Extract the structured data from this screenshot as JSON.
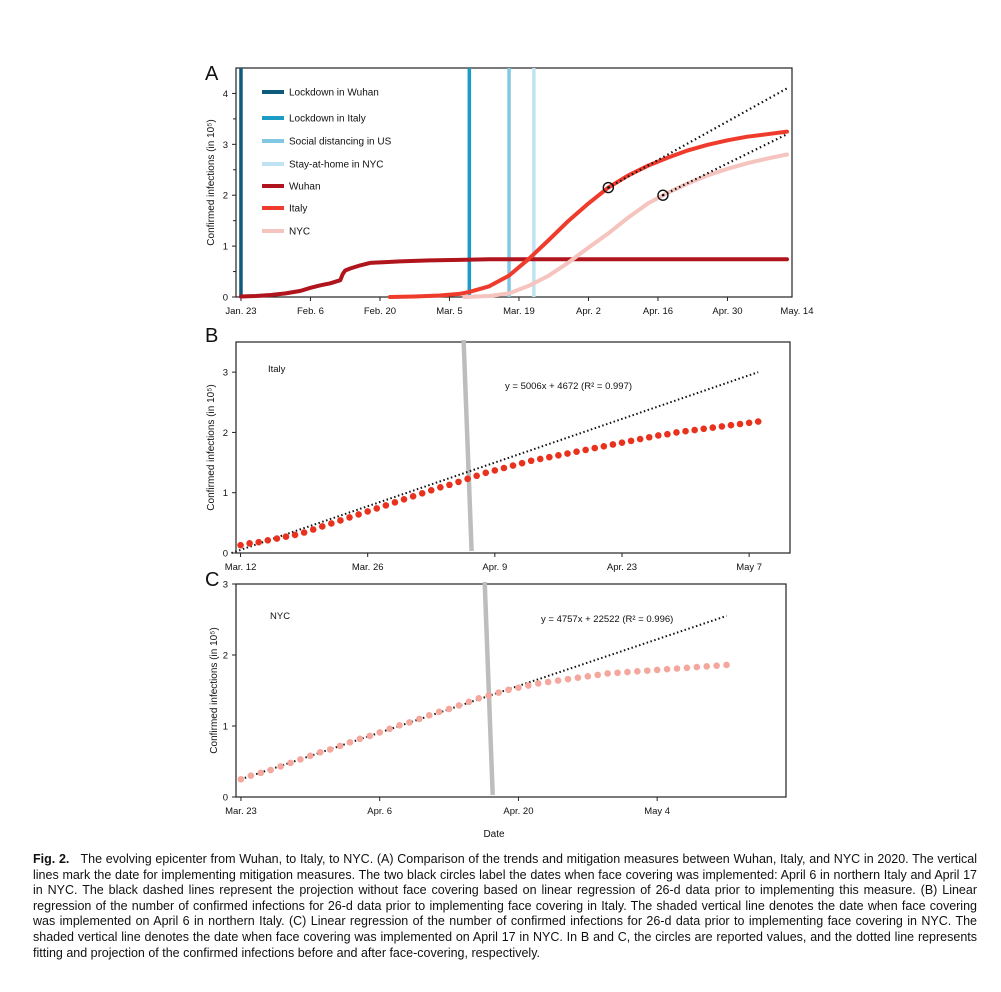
{
  "panels": [
    {
      "label": "A",
      "chart_data": {
        "type": "line",
        "xlabel": "",
        "ylabel": "Confirmed infections (in 10⁵)",
        "ylim": [
          0,
          4.5
        ],
        "yticks": [
          0,
          1,
          2,
          3,
          4
        ],
        "xlim": [
          -1,
          111
        ],
        "xticks": [
          {
            "x": 0,
            "label": "Jan. 23"
          },
          {
            "x": 14,
            "label": "Feb. 6"
          },
          {
            "x": 28,
            "label": "Feb. 20"
          },
          {
            "x": 42,
            "label": "Mar. 5"
          },
          {
            "x": 56,
            "label": "Mar. 19"
          },
          {
            "x": 70,
            "label": "Apr. 2"
          },
          {
            "x": 84,
            "label": "Apr. 16"
          },
          {
            "x": 98,
            "label": "Apr. 30"
          },
          {
            "x": 112,
            "label": "May. 14"
          }
        ],
        "vlines": [
          {
            "name": "Lockdown in Wuhan",
            "x": 0,
            "color": "#0e5a7a"
          },
          {
            "name": "Lockdown in Italy",
            "x": 46,
            "color": "#1a9cc4"
          },
          {
            "name": "Social distancing in US",
            "x": 54,
            "color": "#82c8e4"
          },
          {
            "name": "Stay-at-home in NYC",
            "x": 59,
            "color": "#bfe3f2"
          }
        ],
        "series": [
          {
            "name": "Wuhan",
            "color": "#b0141c",
            "x": [
              0,
              3,
              6,
              9,
              12,
              14,
              16,
              18,
              20,
              20.5,
              21,
              22,
              24,
              26,
              28,
              32,
              38,
              44,
              50,
              60,
              80,
              100,
              110
            ],
            "y": [
              0.01,
              0.02,
              0.04,
              0.07,
              0.12,
              0.18,
              0.23,
              0.27,
              0.33,
              0.45,
              0.52,
              0.56,
              0.62,
              0.67,
              0.68,
              0.7,
              0.72,
              0.73,
              0.74,
              0.74,
              0.74,
              0.74,
              0.74
            ]
          },
          {
            "name": "Italy",
            "color": "#ef3b2c",
            "x": [
              30,
              35,
              40,
              44,
              46,
              50,
              54,
              58,
              62,
              66,
              70,
              74,
              78,
              82,
              86,
              90,
              94,
              98,
              102,
              106,
              110
            ],
            "y": [
              0.0,
              0.01,
              0.03,
              0.06,
              0.1,
              0.21,
              0.42,
              0.75,
              1.12,
              1.5,
              1.84,
              2.15,
              2.39,
              2.58,
              2.74,
              2.88,
              2.99,
              3.08,
              3.15,
              3.2,
              3.25
            ]
          },
          {
            "name": "NYC",
            "color": "#f6c4be",
            "x": [
              45,
              50,
              54,
              58,
              62,
              66,
              70,
              74,
              78,
              82,
              86,
              90,
              94,
              98,
              102,
              106,
              110
            ],
            "y": [
              0.0,
              0.02,
              0.07,
              0.22,
              0.42,
              0.68,
              0.97,
              1.25,
              1.56,
              1.84,
              2.05,
              2.23,
              2.39,
              2.52,
              2.63,
              2.72,
              2.8
            ]
          }
        ],
        "projections": [
          {
            "x": [
              74,
              110
            ],
            "y": [
              2.15,
              4.1
            ]
          },
          {
            "x": [
              85,
              110
            ],
            "y": [
              2.0,
              3.2
            ]
          }
        ],
        "markers": [
          {
            "x": 74,
            "y": 2.15
          },
          {
            "x": 85,
            "y": 2.0
          }
        ],
        "legend": "top-left"
      }
    },
    {
      "label": "B",
      "chart_data": {
        "type": "scatter",
        "title": "Italy",
        "xlabel": "",
        "ylabel": "Confirmed infections (in 10⁵)",
        "ylim": [
          0,
          3.5
        ],
        "yticks": [
          0,
          1,
          2,
          3
        ],
        "xlim": [
          -0.5,
          60.5
        ],
        "xticks": [
          {
            "x": 0,
            "label": "Mar. 12"
          },
          {
            "x": 14,
            "label": "Mar. 26"
          },
          {
            "x": 28,
            "label": "Apr. 9"
          },
          {
            "x": 42,
            "label": "Apr. 23"
          },
          {
            "x": 56,
            "label": "May 7"
          }
        ],
        "annotation": "y = 5006x + 4672 (R² = 0.997)",
        "fit": {
          "x": [
            -1,
            57
          ],
          "y": [
            0.0,
            3.0
          ]
        },
        "intervention_x": 25,
        "point_color": "#e8321e",
        "x": [
          0,
          1,
          2,
          3,
          4,
          5,
          6,
          7,
          8,
          9,
          10,
          11,
          12,
          13,
          14,
          15,
          16,
          17,
          18,
          19,
          20,
          21,
          22,
          23,
          24,
          25,
          26,
          27,
          28,
          29,
          30,
          31,
          32,
          33,
          34,
          35,
          36,
          37,
          38,
          39,
          40,
          41,
          42,
          43,
          44,
          45,
          46,
          47,
          48,
          49,
          50,
          51,
          52,
          53,
          54,
          55,
          56,
          57
        ],
        "y": [
          0.13,
          0.16,
          0.18,
          0.21,
          0.24,
          0.27,
          0.3,
          0.34,
          0.39,
          0.44,
          0.49,
          0.54,
          0.59,
          0.64,
          0.69,
          0.74,
          0.79,
          0.84,
          0.89,
          0.94,
          0.99,
          1.04,
          1.09,
          1.13,
          1.18,
          1.23,
          1.28,
          1.33,
          1.37,
          1.41,
          1.45,
          1.49,
          1.53,
          1.56,
          1.59,
          1.62,
          1.65,
          1.68,
          1.71,
          1.74,
          1.77,
          1.8,
          1.83,
          1.86,
          1.89,
          1.92,
          1.95,
          1.97,
          2.0,
          2.02,
          2.04,
          2.06,
          2.08,
          2.1,
          2.12,
          2.14,
          2.16,
          2.18
        ]
      }
    },
    {
      "label": "C",
      "chart_data": {
        "type": "scatter",
        "title": "NYC",
        "xlabel": "Date",
        "ylabel": "Confirmed infections (in 10⁵)",
        "ylim": [
          0,
          3
        ],
        "yticks": [
          0,
          1,
          2,
          3
        ],
        "xlim": [
          -0.5,
          55
        ],
        "xticks": [
          {
            "x": 0,
            "label": "Mar. 23"
          },
          {
            "x": 14,
            "label": "Apr. 6"
          },
          {
            "x": 28,
            "label": "Apr. 20"
          },
          {
            "x": 42,
            "label": "May 4"
          }
        ],
        "annotation": "y = 4757x + 22522 (R² = 0.996)",
        "fit": {
          "x": [
            0,
            49
          ],
          "y": [
            0.25,
            2.55
          ]
        },
        "intervention_x": 25,
        "point_color": "#f4a79d",
        "x": [
          0,
          1,
          2,
          3,
          4,
          5,
          6,
          7,
          8,
          9,
          10,
          11,
          12,
          13,
          14,
          15,
          16,
          17,
          18,
          19,
          20,
          21,
          22,
          23,
          24,
          25,
          26,
          27,
          28,
          29,
          30,
          31,
          32,
          33,
          34,
          35,
          36,
          37,
          38,
          39,
          40,
          41,
          42,
          43,
          44,
          45,
          46,
          47,
          48,
          49
        ],
        "y": [
          0.25,
          0.3,
          0.34,
          0.38,
          0.43,
          0.48,
          0.53,
          0.58,
          0.63,
          0.67,
          0.72,
          0.77,
          0.82,
          0.86,
          0.91,
          0.96,
          1.01,
          1.05,
          1.1,
          1.15,
          1.2,
          1.24,
          1.29,
          1.34,
          1.39,
          1.43,
          1.47,
          1.51,
          1.54,
          1.57,
          1.6,
          1.62,
          1.64,
          1.66,
          1.68,
          1.7,
          1.72,
          1.74,
          1.75,
          1.76,
          1.77,
          1.78,
          1.79,
          1.8,
          1.81,
          1.82,
          1.83,
          1.84,
          1.85,
          1.86
        ]
      }
    }
  ],
  "caption": {
    "label": "Fig. 2.",
    "text": "The evolving epicenter from Wuhan, to Italy, to NYC. (A) Comparison of the trends and mitigation measures between Wuhan, Italy, and NYC in 2020. The vertical lines mark the date for implementing mitigation measures. The two black circles label the dates when face covering was implemented: April 6 in northern Italy and April 17 in NYC. The black dashed lines represent the projection without face covering based on linear regression of 26-d data prior to implementing this measure. (B) Linear regression of the number of confirmed infections for 26-d data prior to implementing face covering in Italy. The shaded vertical line denotes the date when face covering was implemented on April 6 in northern Italy. (C) Linear regression of the number of confirmed infections for 26-d data prior to implementing face covering in NYC. The shaded vertical line denotes the date when face covering was implemented on April 17 in NYC. In B and C, the circles are reported values, and the dotted line represents fitting and projection of the confirmed infections before and after face-covering, respectively."
  }
}
